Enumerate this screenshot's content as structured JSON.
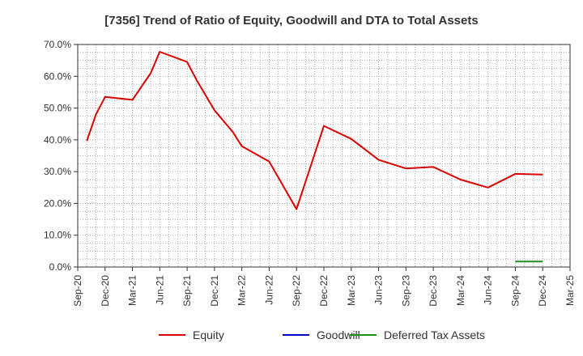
{
  "chart_data": {
    "type": "line",
    "title": "[7356]  Trend of Ratio of Equity, Goodwill and DTA to Total Assets",
    "xlabel": "",
    "ylabel": "",
    "ylim": [
      0,
      0.7
    ],
    "y_ticks": [
      0,
      0.1,
      0.2,
      0.3,
      0.4,
      0.5,
      0.6,
      0.7
    ],
    "y_tick_labels": [
      "0.0%",
      "10.0%",
      "20.0%",
      "30.0%",
      "40.0%",
      "50.0%",
      "60.0%",
      "70.0%"
    ],
    "x_tick_labels": [
      "Sep-20",
      "Dec-20",
      "Mar-21",
      "Jun-21",
      "Sep-21",
      "Dec-21",
      "Mar-22",
      "Jun-22",
      "Sep-22",
      "Dec-22",
      "Mar-23",
      "Jun-23",
      "Sep-23",
      "Dec-23",
      "Mar-24",
      "Jun-24",
      "Sep-24",
      "Dec-24",
      "Mar-25"
    ],
    "grid": true,
    "legend_position": "bottom",
    "series": [
      {
        "name": "Equity",
        "color": "#dd0000",
        "points": [
          [
            "2020-10",
            0.397
          ],
          [
            "2020-11",
            0.48
          ],
          [
            "2020-12",
            0.535
          ],
          [
            "2021-03",
            0.526
          ],
          [
            "2021-05",
            0.61
          ],
          [
            "2021-06",
            0.677
          ],
          [
            "2021-09",
            0.645
          ],
          [
            "2021-10",
            0.59
          ],
          [
            "2021-12",
            0.493
          ],
          [
            "2022-02",
            0.425
          ],
          [
            "2022-03",
            0.38
          ],
          [
            "2022-06",
            0.332
          ],
          [
            "2022-09",
            0.182
          ],
          [
            "2022-12",
            0.444
          ],
          [
            "2023-03",
            0.403
          ],
          [
            "2023-06",
            0.337
          ],
          [
            "2023-09",
            0.31
          ],
          [
            "2023-12",
            0.315
          ],
          [
            "2024-03",
            0.275
          ],
          [
            "2024-06",
            0.25
          ],
          [
            "2024-09",
            0.293
          ],
          [
            "2024-12",
            0.291
          ]
        ]
      },
      {
        "name": "Goodwill",
        "color": "#0000cc",
        "points": []
      },
      {
        "name": "Deferred Tax Assets",
        "color": "#228b22",
        "points": [
          [
            "2024-09",
            0.017
          ],
          [
            "2024-12",
            0.017
          ]
        ]
      }
    ]
  }
}
